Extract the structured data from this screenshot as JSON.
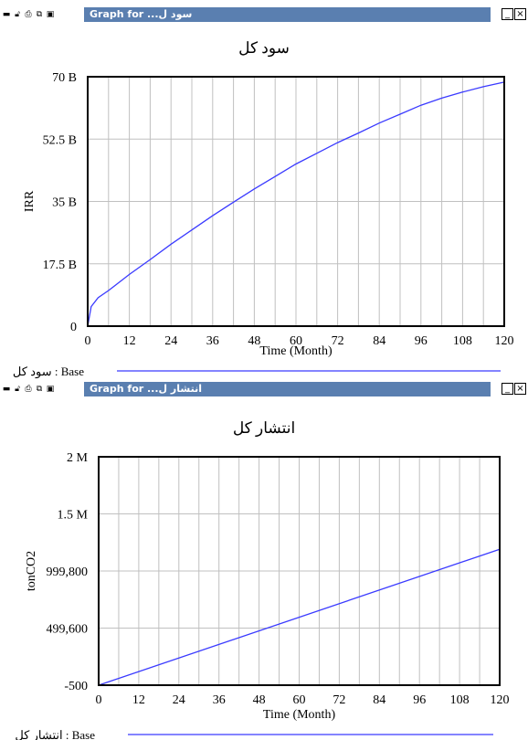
{
  "colors": {
    "line": "#3a3aff",
    "titlebar": "#5a7fb0",
    "frame": "#000000",
    "grid": "#c0c0c0"
  },
  "panels": [
    {
      "window_title": "Graph for ...سود ل",
      "toolbar_icons": [
        "minimize-icon",
        "lock-icon",
        "print-icon",
        "copy-icon",
        "save-icon"
      ],
      "chart_data": {
        "type": "line",
        "title": "سود کل",
        "xlabel": "Time (Month)",
        "ylabel": "IRR",
        "x_ticks": [
          "0",
          "12",
          "24",
          "36",
          "48",
          "60",
          "72",
          "84",
          "96",
          "108",
          "120"
        ],
        "y_ticks": [
          "0",
          "17.5 B",
          "35 B",
          "52.5 B",
          "70 B"
        ],
        "xlim": [
          0,
          120
        ],
        "ylim": [
          0,
          70000000000
        ],
        "grid": true,
        "series": [
          {
            "name": "Base",
            "legend_label": "سود کل : Base",
            "x": [
              0,
              1,
              3,
              6,
              12,
              18,
              24,
              30,
              36,
              42,
              48,
              54,
              60,
              66,
              72,
              78,
              84,
              90,
              96,
              102,
              108,
              114,
              120
            ],
            "y": [
              0,
              5500000000,
              8000000000,
              10000000000,
              14500000000,
              18700000000,
              23000000000,
              27000000000,
              31000000000,
              34800000000,
              38500000000,
              42000000000,
              45500000000,
              48500000000,
              51500000000,
              54200000000,
              57000000000,
              59500000000,
              62000000000,
              64000000000,
              65700000000,
              67200000000,
              68500000000
            ]
          }
        ]
      }
    },
    {
      "window_title": "Graph for ...انتشار ل",
      "toolbar_icons": [
        "minimize-icon",
        "lock-icon",
        "print-icon",
        "copy-icon",
        "save-icon"
      ],
      "chart_data": {
        "type": "line",
        "title": "انتشار کل",
        "xlabel": "Time (Month)",
        "ylabel": "tonCO2",
        "x_ticks": [
          "0",
          "12",
          "24",
          "36",
          "48",
          "60",
          "72",
          "84",
          "96",
          "108",
          "120"
        ],
        "y_ticks": [
          "-500",
          "499,600",
          "999,800",
          "1.5 M",
          "2 M"
        ],
        "xlim": [
          0,
          120
        ],
        "ylim": [
          -500,
          2000000
        ],
        "grid": true,
        "series": [
          {
            "name": "Base",
            "legend_label": "انتشار کل : Base",
            "x": [
              0,
              120
            ],
            "y": [
              -500,
              1190000
            ]
          }
        ]
      }
    }
  ]
}
